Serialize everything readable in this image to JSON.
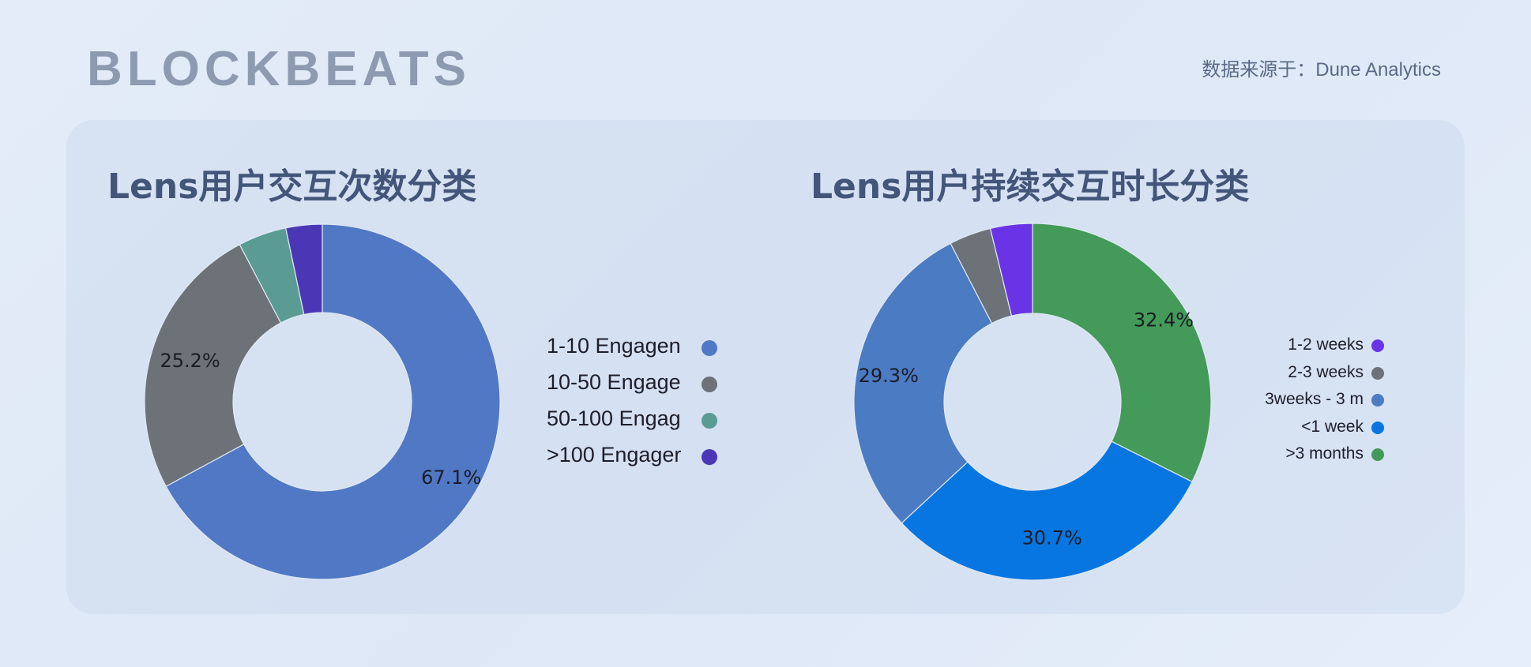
{
  "header": {
    "logo_text": "BLOCKBEATS",
    "source_text": "数据来源于：Dune Analytics"
  },
  "chart_data": [
    {
      "type": "pie",
      "title": "Lens用户交互次数分类",
      "donut": true,
      "legend_position": "right",
      "slices": [
        {
          "label": "1-10 Engagen",
          "value": 67.1,
          "color": "#5078c4",
          "data_label": "67.1%"
        },
        {
          "label": "10-50 Engage",
          "value": 25.2,
          "color": "#6c7278",
          "data_label": "25.2%"
        },
        {
          "label": "50-100 Engag",
          "value": 4.4,
          "color": "#5a9c94",
          "data_label": ""
        },
        {
          "label": ">100 Engager",
          "value": 3.3,
          "color": "#4b37b6",
          "data_label": ""
        }
      ]
    },
    {
      "type": "pie",
      "title": "Lens用户持续交互时长分类",
      "donut": true,
      "legend_position": "right",
      "slices": [
        {
          "label": ">3 months",
          "value": 32.4,
          "color": "#449a58",
          "data_label": "32.4%"
        },
        {
          "label": "<1 week",
          "value": 30.7,
          "color": "#0776e0",
          "data_label": "30.7%"
        },
        {
          "label": "3weeks - 3 m",
          "value": 29.3,
          "color": "#4b7bc2",
          "data_label": "29.3%"
        },
        {
          "label": "2-3 weeks",
          "value": 3.8,
          "color": "#6c7278",
          "data_label": ""
        },
        {
          "label": "1-2 weeks",
          "value": 3.8,
          "color": "#6a34e6",
          "data_label": ""
        }
      ],
      "legend_order": [
        "1-2 weeks",
        "2-3 weeks",
        "3weeks - 3 m",
        "<1 week",
        ">3 months"
      ]
    }
  ]
}
